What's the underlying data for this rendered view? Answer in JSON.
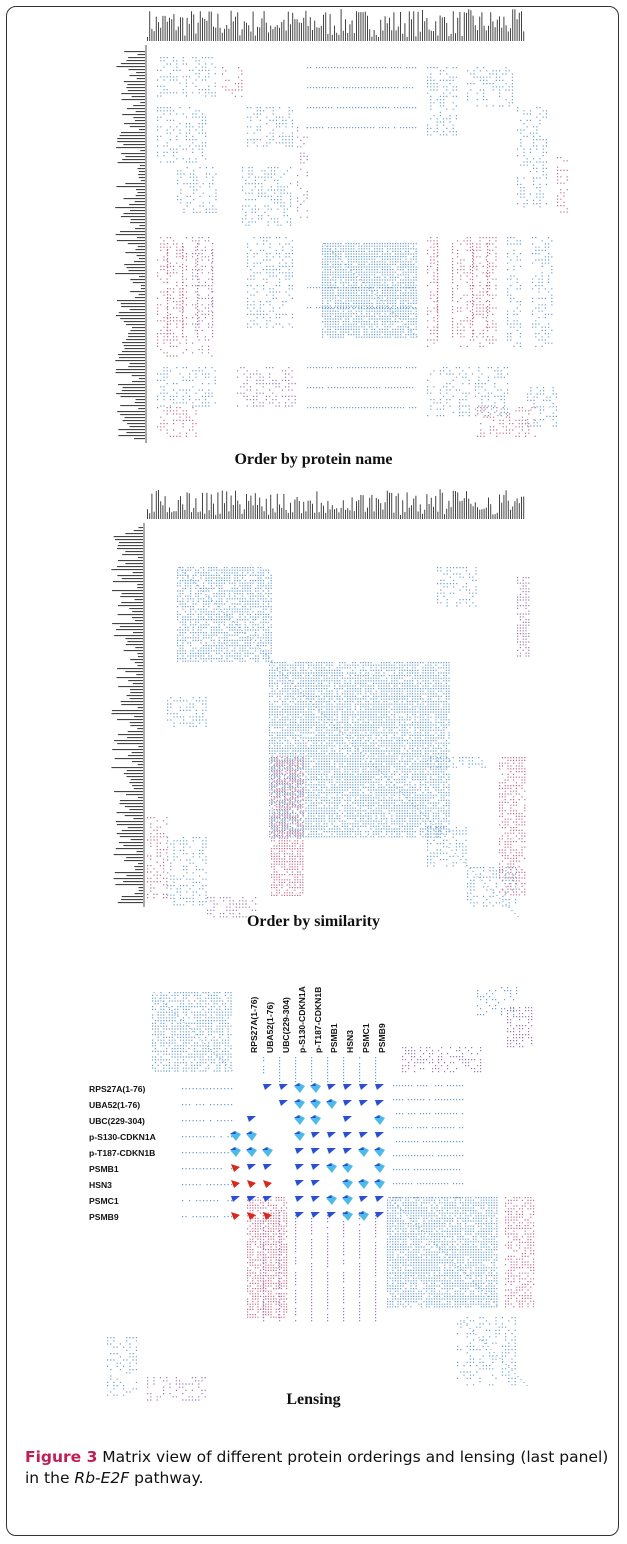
{
  "figure": {
    "panels": [
      {
        "id": "by-name",
        "title": "Order by protein name"
      },
      {
        "id": "by-similarity",
        "title": "Order by similarity"
      },
      {
        "id": "lensing",
        "title": "Lensing"
      }
    ],
    "lens_labels": [
      "RPS27A(1-76)",
      "UBA52(1-76)",
      "UBC(229-304)",
      "p-S130-CDKN1A",
      "p-T187-CDKN1B",
      "PSMB1",
      "HSN3",
      "PSMC1",
      "PSMB9"
    ],
    "caption": {
      "figure_number": "Figure 3",
      "text_before": " Matrix view of different protein orderings and lensing (last panel) in the ",
      "pathway": "Rb-E2F",
      "text_after": " pathway."
    },
    "colors": {
      "blue_cell": "#6a9fd0",
      "pink_cell": "#c46a8a",
      "purple_cell": "#9a78b8",
      "lens_blue": "#2a4fd6",
      "lens_cyan": "#4fb9e8",
      "lens_red": "#d8281c"
    }
  }
}
